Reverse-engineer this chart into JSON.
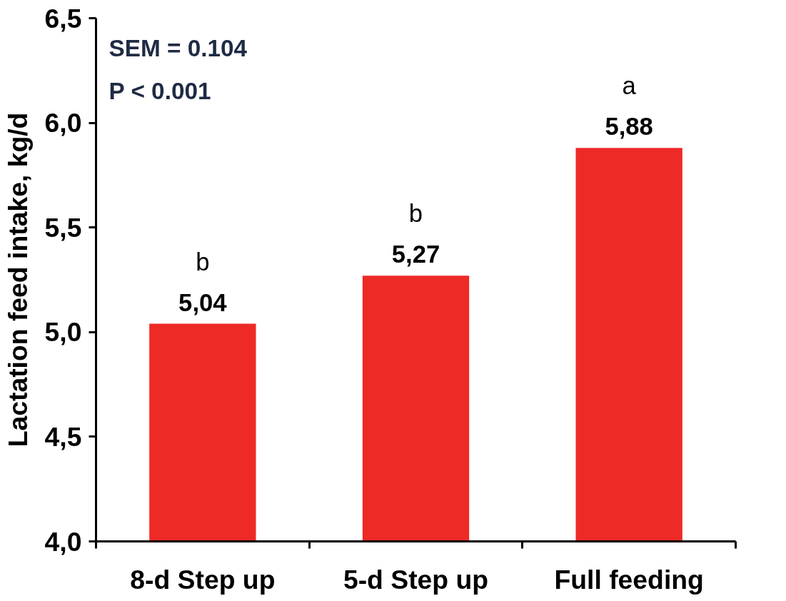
{
  "chart_data": {
    "type": "bar",
    "ylabel": "Lactation feed intake, kg/d",
    "categories": [
      "8-d Step up",
      "5-d Step up",
      "Full feeding"
    ],
    "values": [
      5.04,
      5.27,
      5.88
    ],
    "color": "#ee2a26",
    "value_labels": [
      "5,04",
      "5,27",
      "5,88"
    ],
    "ylim": [
      4.0,
      6.5
    ],
    "yticks": [
      {
        "value": 4.0,
        "label": "4,0"
      },
      {
        "value": 4.5,
        "label": "4,5"
      },
      {
        "value": 5.0,
        "label": "5,0"
      },
      {
        "value": 5.5,
        "label": "5,5"
      },
      {
        "value": 6.0,
        "label": "6,0"
      },
      {
        "value": 6.5,
        "label": "6,5"
      }
    ],
    "annotations": [
      "SEM = 0.104",
      "P < 0.001",
      {
        "text": "b",
        "x": "8-d Step up",
        "y": 5.04
      },
      {
        "text": "b",
        "x": "5-d Step up",
        "y": 5.27
      },
      {
        "text": "a",
        "x": "Full feeding",
        "y": 5.88
      }
    ],
    "grid": false
  }
}
